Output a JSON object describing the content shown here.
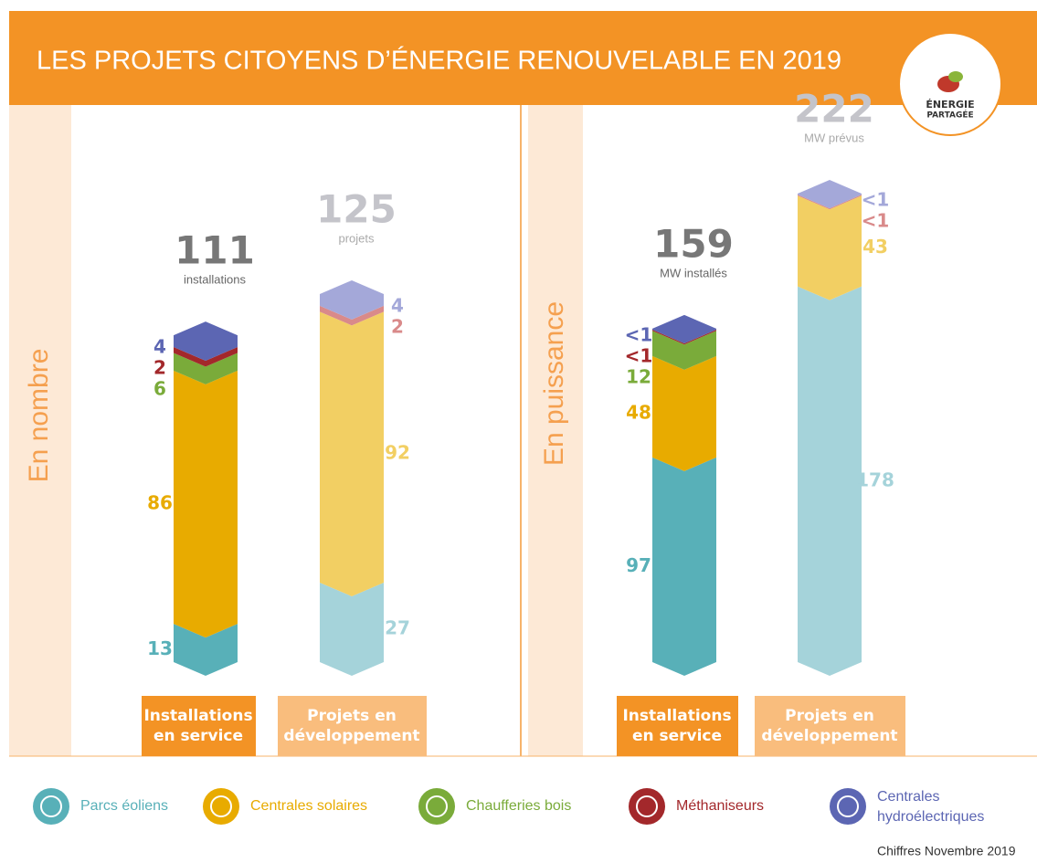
{
  "chart_data": {
    "type": "stacked-column",
    "title": "LES PROJETS CITOYENS D’ÉNERGIE RENOUVELABLE EN 2019",
    "logo": [
      "ÉNERGIE",
      "PARTAGÉE"
    ],
    "series": [
      {
        "name": "Parcs éoliens",
        "color": "#58b0b8",
        "pale_color": "#a5d3da"
      },
      {
        "name": "Centrales solaires",
        "color": "#e8ab00",
        "pale_color": "#f2cf63"
      },
      {
        "name": "Chaufferies bois",
        "color": "#7aab3a",
        "pale_color": "#b9d48f"
      },
      {
        "name": "Méthaniseurs",
        "color": "#a3282b",
        "pale_color": "#d98a8a"
      },
      {
        "name": "Centrales hydroélectriques",
        "color": "#5c66b3",
        "pale_color": "#a4a8d9"
      }
    ],
    "panels": [
      {
        "title": "En nombre",
        "stacks": [
          {
            "category": "Installations en service",
            "total": 111,
            "total_label": "installations",
            "values": [
              13,
              86,
              6,
              2,
              4
            ]
          },
          {
            "category": "Projets en développement",
            "total": 125,
            "total_label": "projets",
            "values": [
              27,
              92,
              null,
              2,
              4
            ]
          }
        ]
      },
      {
        "title": "En puissance",
        "stacks": [
          {
            "category": "Installations en service",
            "total": 159,
            "total_label": "MW installés",
            "values": [
              97,
              48,
              12,
              0.5,
              0.5
            ],
            "value_labels": [
              null,
              null,
              null,
              "<1",
              "<1"
            ]
          },
          {
            "category": "Projets en développement",
            "total": 222,
            "total_label": "MW prévus",
            "values": [
              178,
              43,
              null,
              0.5,
              0.5
            ],
            "value_labels": [
              null,
              null,
              null,
              "<1",
              "<1"
            ]
          }
        ]
      }
    ],
    "footnote": "Chiffres Novembre 2019"
  }
}
